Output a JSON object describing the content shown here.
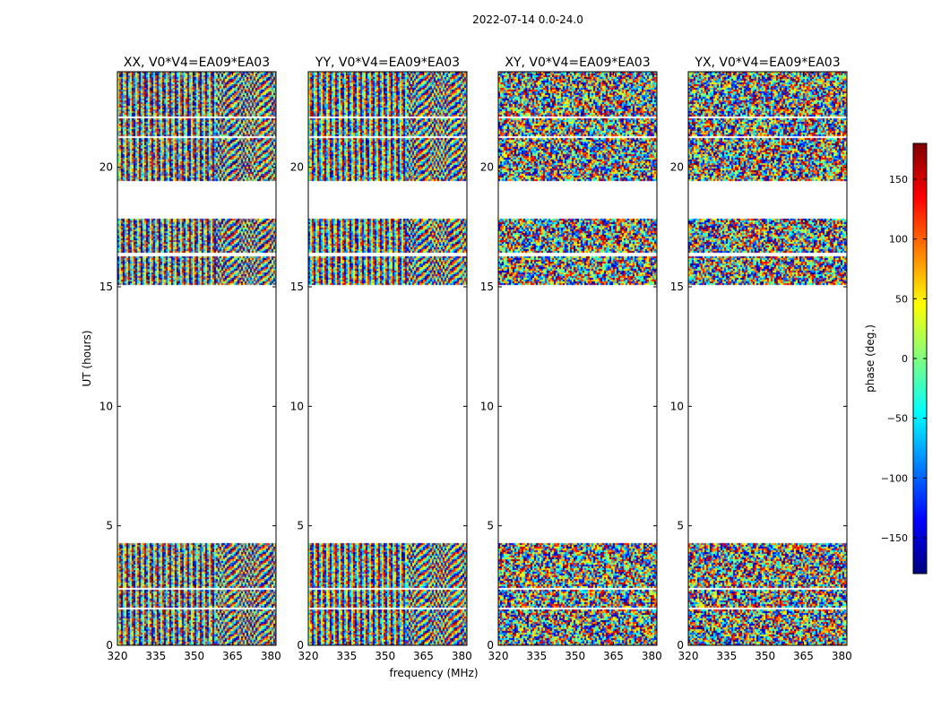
{
  "figure": {
    "suptitle": "2022-07-14 0.0-24.0",
    "xlabel": "frequency (MHz)",
    "ylabel": "UT (hours)"
  },
  "colorbar": {
    "label": "phase (deg.)",
    "range": [
      -180,
      180
    ],
    "ticks": [
      150,
      100,
      50,
      0,
      -50,
      -100,
      -150
    ],
    "tick_labels": [
      "150",
      "100",
      "50",
      "0",
      "−50",
      "−100",
      "−150"
    ],
    "colormap": "jet",
    "colors": [
      "#00007f",
      "#0000ff",
      "#007fff",
      "#00ffff",
      "#7fff7f",
      "#ffff00",
      "#ff7f00",
      "#ff0000",
      "#7f0000"
    ]
  },
  "chart_data": [
    {
      "type": "heatmap",
      "title": "XX, V0*V4=EA09*EA03",
      "pol": "XX",
      "xlim": [
        320,
        382
      ],
      "ylim": [
        0,
        24
      ],
      "xticks": [
        320,
        335,
        350,
        365,
        380
      ],
      "yticks": [
        0,
        5,
        10,
        15,
        20
      ],
      "coherent": true,
      "data_ranges_hours": [
        [
          0,
          4.3
        ],
        [
          15.1,
          16.3
        ],
        [
          16.5,
          17.9
        ],
        [
          19.5,
          24
        ]
      ]
    },
    {
      "type": "heatmap",
      "title": "YY, V0*V4=EA09*EA03",
      "pol": "YY",
      "xlim": [
        320,
        382
      ],
      "ylim": [
        0,
        24
      ],
      "xticks": [
        320,
        335,
        350,
        365,
        380
      ],
      "yticks": [
        0,
        5,
        10,
        15,
        20
      ],
      "coherent": true,
      "data_ranges_hours": [
        [
          0,
          4.3
        ],
        [
          15.1,
          16.3
        ],
        [
          16.5,
          17.9
        ],
        [
          19.5,
          24
        ]
      ]
    },
    {
      "type": "heatmap",
      "title": "XY, V0*V4=EA09*EA03",
      "pol": "XY",
      "xlim": [
        320,
        382
      ],
      "ylim": [
        0,
        24
      ],
      "xticks": [
        320,
        335,
        350,
        365,
        380
      ],
      "yticks": [
        0,
        5,
        10,
        15,
        20
      ],
      "coherent": false,
      "data_ranges_hours": [
        [
          0,
          4.3
        ],
        [
          15.1,
          16.3
        ],
        [
          16.5,
          17.9
        ],
        [
          19.5,
          24
        ]
      ]
    },
    {
      "type": "heatmap",
      "title": "YX, V0*V4=EA09*EA03",
      "pol": "YX",
      "xlim": [
        320,
        382
      ],
      "ylim": [
        0,
        24
      ],
      "xticks": [
        320,
        335,
        350,
        365,
        380
      ],
      "yticks": [
        0,
        5,
        10,
        15,
        20
      ],
      "coherent": false,
      "data_ranges_hours": [
        [
          0,
          4.3
        ],
        [
          15.1,
          16.3
        ],
        [
          16.5,
          17.9
        ],
        [
          19.5,
          24
        ]
      ]
    }
  ]
}
